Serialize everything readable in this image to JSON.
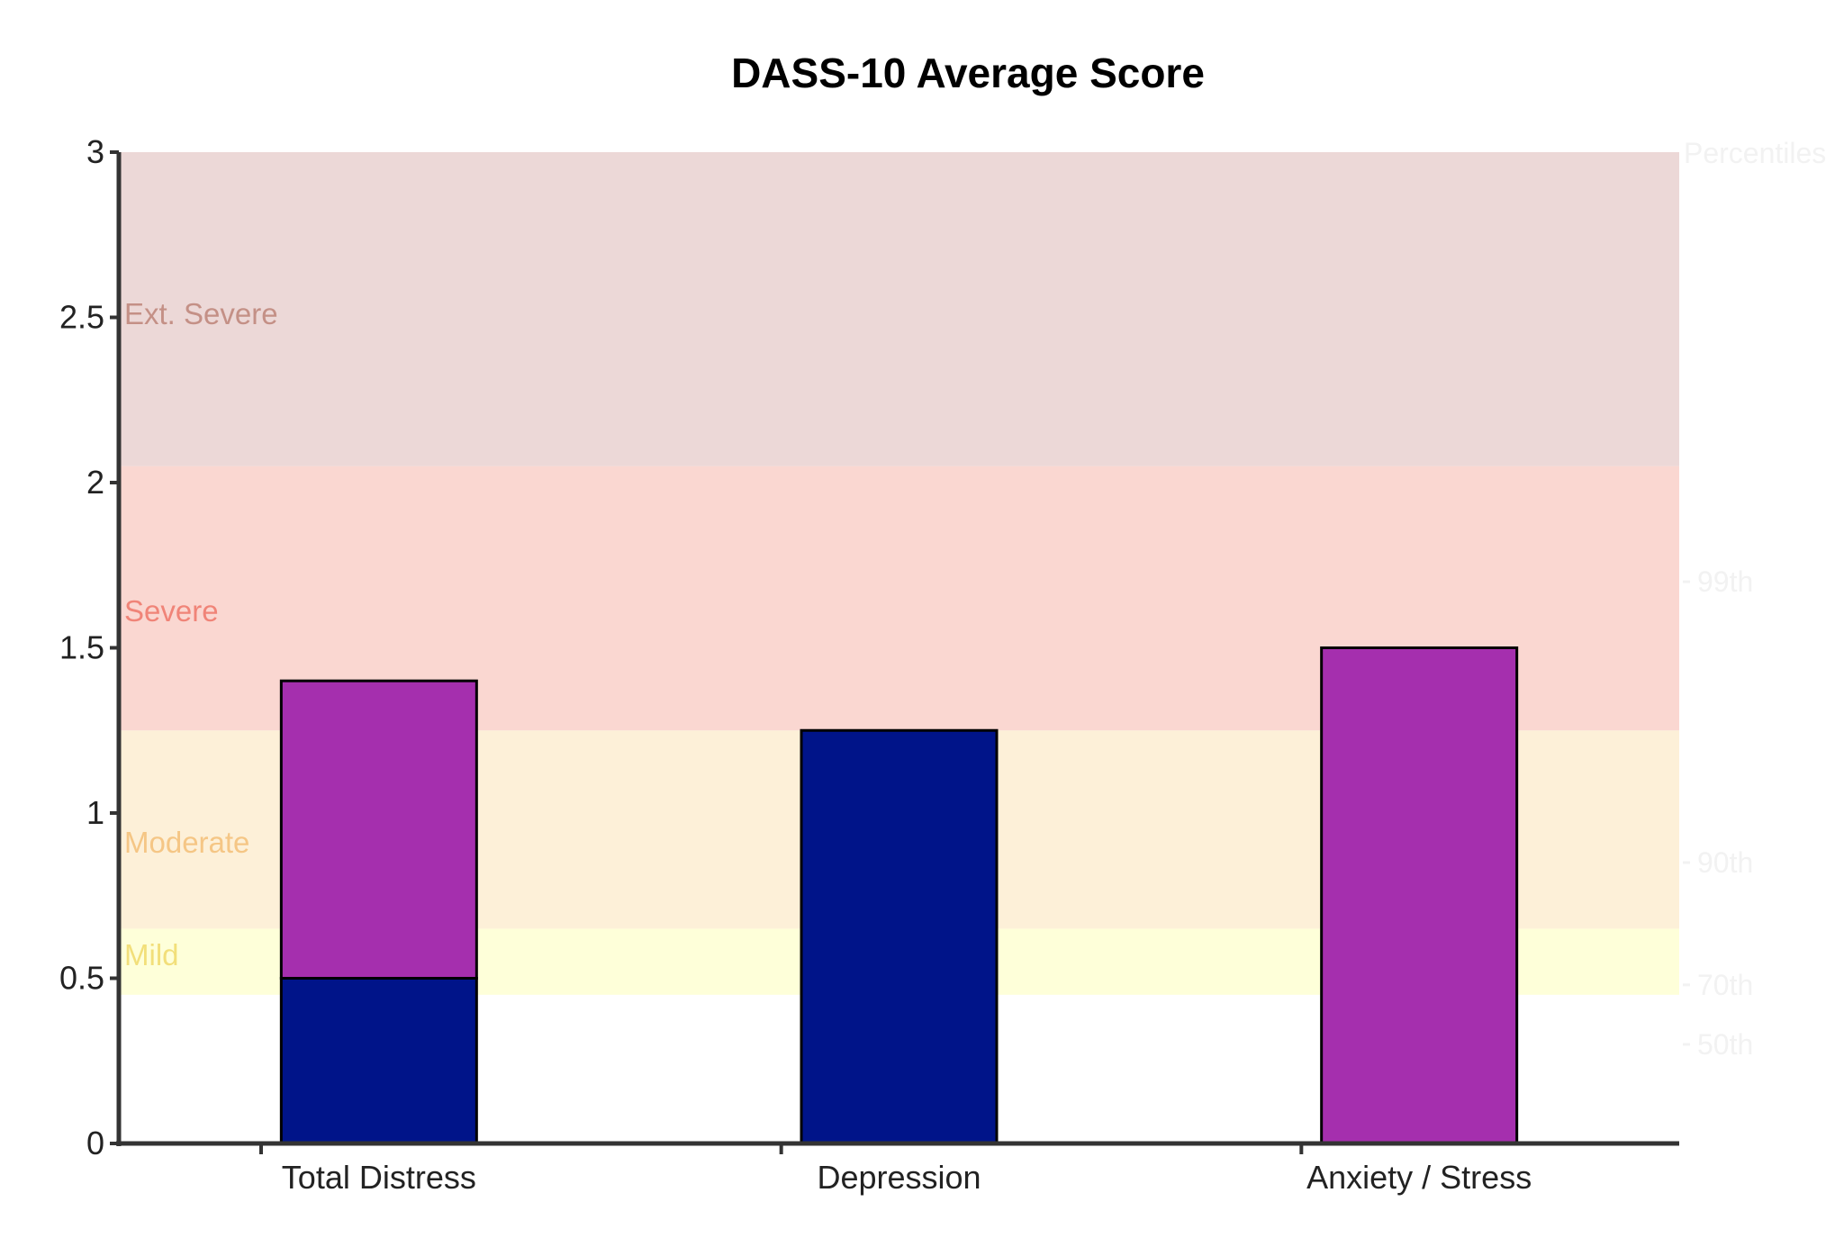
{
  "chart_data": {
    "type": "bar",
    "title": "DASS-10 Average Score",
    "xlabel": "",
    "ylabel": "",
    "ylim": [
      0,
      3
    ],
    "yticks": [
      "0",
      "0.5",
      "1",
      "1.5",
      "2",
      "2.5",
      "3"
    ],
    "categories": [
      "Total Distress",
      "Depression",
      "Anxiety / Stress"
    ],
    "segments": [
      {
        "category": "Total Distress",
        "from": 0,
        "to": 0.5,
        "color": "#001489"
      },
      {
        "category": "Total Distress",
        "from": 0.5,
        "to": 1.4,
        "color": "#a52fae"
      },
      {
        "category": "Depression",
        "from": 0,
        "to": 1.25,
        "color": "#001489"
      },
      {
        "category": "Anxiety / Stress",
        "from": 0,
        "to": 1.5,
        "color": "#a52fae"
      }
    ],
    "bands": [
      {
        "label": "Mild",
        "from": 0.45,
        "to": 0.65,
        "fill": "#feffd9",
        "text_color": "#f2df7a",
        "label_y": 0.57
      },
      {
        "label": "Moderate",
        "from": 0.65,
        "to": 1.25,
        "fill": "#fdf0d8",
        "text_color": "#f5c685",
        "label_y": 0.91
      },
      {
        "label": "Severe",
        "from": 1.25,
        "to": 2.05,
        "fill": "#fad7d1",
        "text_color": "#f08478",
        "label_y": 1.61
      },
      {
        "label": "Ext. Severe",
        "from": 2.05,
        "to": 3.0,
        "fill": "#ecd8d7",
        "text_color": "#c49086",
        "label_y": 2.51
      }
    ],
    "percentile_axis": {
      "label": "Percentiles",
      "color": "#f2f2f2",
      "ticks": [
        {
          "label": "99th",
          "y": 1.7
        },
        {
          "label": "90th",
          "y": 0.85
        },
        {
          "label": "70th",
          "y": 0.48
        },
        {
          "label": "50th",
          "y": 0.3
        }
      ]
    },
    "grid": false,
    "legend": "none"
  }
}
